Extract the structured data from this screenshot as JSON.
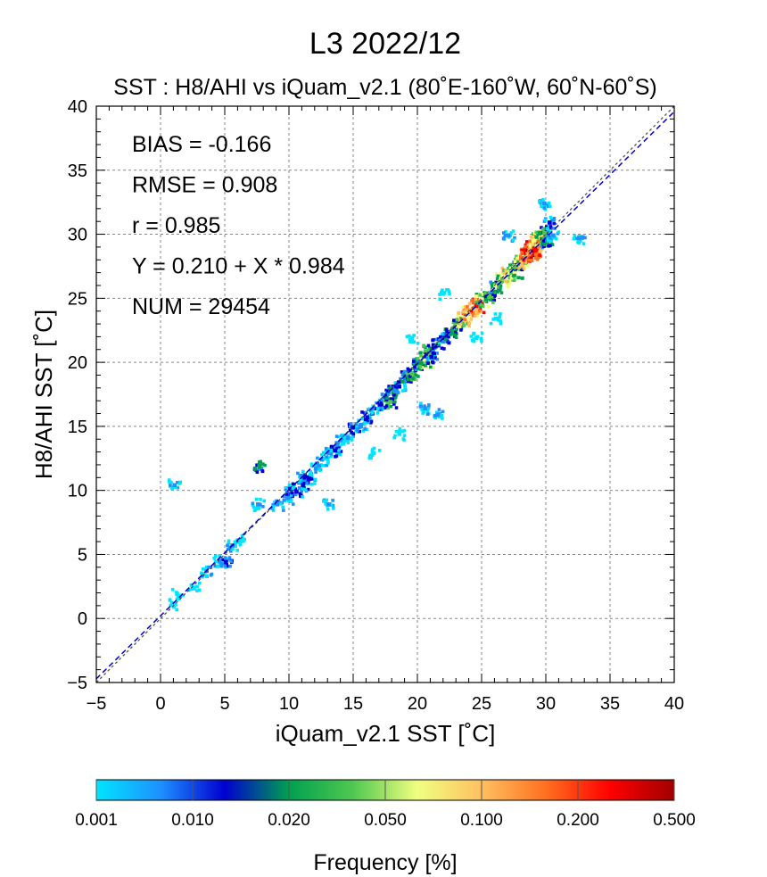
{
  "chart_data": {
    "type": "heatmap",
    "title": "L3  2022/12",
    "subtitle": "SST : H8/AHI vs iQuam_v2.1  (80˚E-160˚W, 60˚N-60˚S)",
    "xlabel": "iQuam_v2.1 SST [˚C]",
    "ylabel": "H8/AHI SST [˚C]",
    "xlim": [
      -5,
      40
    ],
    "ylim": [
      -5,
      40
    ],
    "xticks": [
      "−5",
      "0",
      "5",
      "10",
      "15",
      "20",
      "25",
      "30",
      "35",
      "40"
    ],
    "yticks": [
      "−5",
      "0",
      "5",
      "10",
      "15",
      "20",
      "25",
      "30",
      "35",
      "40"
    ],
    "grid": true,
    "stats": [
      "BIAS = -0.166",
      "RMSE = 0.908",
      "r = 0.985",
      "Y = 0.210 + X * 0.984",
      "NUM = 29454"
    ],
    "regression": {
      "intercept": 0.21,
      "slope": 0.984,
      "color": "#0000cc"
    },
    "identity_line": {
      "color": "#555555"
    },
    "colorbar": {
      "label": "Frequency [%]",
      "ticks": [
        "0.001",
        "0.010",
        "0.020",
        "0.050",
        "0.100",
        "0.200",
        "0.500"
      ],
      "colors": [
        "#00e5ff",
        "#1e90ff",
        "#0000d0",
        "#00a050",
        "#50c850",
        "#f0ff80",
        "#ffc060",
        "#ff7020",
        "#ff0000",
        "#a00000"
      ]
    },
    "density_points": [
      [
        1.0,
        1.2,
        0
      ],
      [
        1.2,
        2.0,
        0
      ],
      [
        2.5,
        2.5,
        0
      ],
      [
        3.5,
        3.8,
        1
      ],
      [
        4.5,
        4.6,
        1
      ],
      [
        5.0,
        4.5,
        2
      ],
      [
        5.5,
        5.8,
        1
      ],
      [
        6.0,
        6.2,
        0
      ],
      [
        7.5,
        9.0,
        1
      ],
      [
        7.6,
        12.0,
        3
      ],
      [
        1.0,
        10.5,
        1
      ],
      [
        9.0,
        9.0,
        1
      ],
      [
        9.8,
        9.5,
        1
      ],
      [
        10.0,
        10.2,
        2
      ],
      [
        10.5,
        10.0,
        2
      ],
      [
        11.0,
        10.5,
        2
      ],
      [
        11.0,
        11.2,
        1
      ],
      [
        11.5,
        11.0,
        2
      ],
      [
        12.0,
        11.8,
        1
      ],
      [
        12.5,
        12.5,
        1
      ],
      [
        13.0,
        13.0,
        1
      ],
      [
        13.5,
        13.2,
        2
      ],
      [
        14.0,
        14.0,
        1
      ],
      [
        14.5,
        14.2,
        1
      ],
      [
        15.0,
        15.0,
        2
      ],
      [
        15.5,
        15.2,
        1
      ],
      [
        16.0,
        15.8,
        2
      ],
      [
        16.5,
        16.5,
        1
      ],
      [
        17.0,
        16.8,
        2
      ],
      [
        17.5,
        17.5,
        2
      ],
      [
        17.8,
        17.0,
        4
      ],
      [
        18.0,
        18.0,
        3
      ],
      [
        18.5,
        18.2,
        2
      ],
      [
        19.0,
        19.0,
        3
      ],
      [
        19.5,
        19.2,
        4
      ],
      [
        20.0,
        20.0,
        3
      ],
      [
        20.5,
        20.3,
        5
      ],
      [
        20.8,
        21.0,
        4
      ],
      [
        21.0,
        20.5,
        2
      ],
      [
        21.5,
        21.5,
        3
      ],
      [
        22.0,
        22.0,
        2
      ],
      [
        22.5,
        22.3,
        3
      ],
      [
        23.0,
        23.0,
        4
      ],
      [
        23.5,
        23.5,
        6
      ],
      [
        24.0,
        24.0,
        7
      ],
      [
        24.5,
        24.5,
        8
      ],
      [
        25.0,
        25.0,
        5
      ],
      [
        25.5,
        25.2,
        4
      ],
      [
        26.0,
        26.0,
        3
      ],
      [
        26.5,
        26.5,
        5
      ],
      [
        27.0,
        27.0,
        6
      ],
      [
        27.5,
        27.2,
        5
      ],
      [
        27.8,
        27.8,
        4
      ],
      [
        28.0,
        28.0,
        6
      ],
      [
        28.5,
        28.5,
        8
      ],
      [
        28.8,
        28.7,
        9
      ],
      [
        29.0,
        29.0,
        8
      ],
      [
        29.2,
        29.5,
        7
      ],
      [
        29.5,
        29.8,
        5
      ],
      [
        29.8,
        30.2,
        4
      ],
      [
        30.0,
        29.5,
        3
      ],
      [
        30.2,
        31.0,
        2
      ],
      [
        29.8,
        32.5,
        1
      ],
      [
        30.5,
        30.0,
        1
      ],
      [
        32.5,
        29.8,
        1
      ],
      [
        20.5,
        16.5,
        1
      ],
      [
        21.5,
        16.0,
        1
      ],
      [
        13.0,
        9.0,
        1
      ],
      [
        16.5,
        13.0,
        0
      ],
      [
        22.0,
        25.5,
        0
      ],
      [
        26.0,
        23.5,
        0
      ],
      [
        19.5,
        22.0,
        0
      ],
      [
        18.5,
        14.5,
        0
      ],
      [
        24.5,
        22.0,
        0
      ],
      [
        27.0,
        30.0,
        1
      ]
    ]
  }
}
